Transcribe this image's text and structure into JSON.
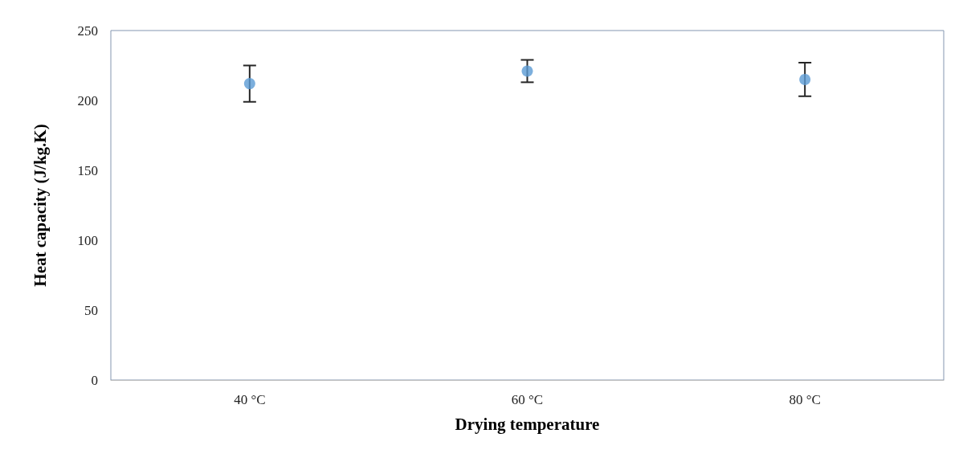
{
  "chart_data": {
    "type": "scatter",
    "xlabel": "Drying temperature",
    "ylabel": "Heat capacity (J/kg.K)",
    "categories": [
      "40 °C",
      "60 °C",
      "80 °C"
    ],
    "series": [
      {
        "color": "#5b9bd5",
        "values": [
          212,
          221,
          215
        ],
        "errors": [
          13,
          8,
          12
        ]
      }
    ],
    "ylim": [
      0,
      250
    ],
    "yticks": [
      0,
      50,
      100,
      150,
      200,
      250
    ],
    "grid": false,
    "marker": "circle"
  }
}
